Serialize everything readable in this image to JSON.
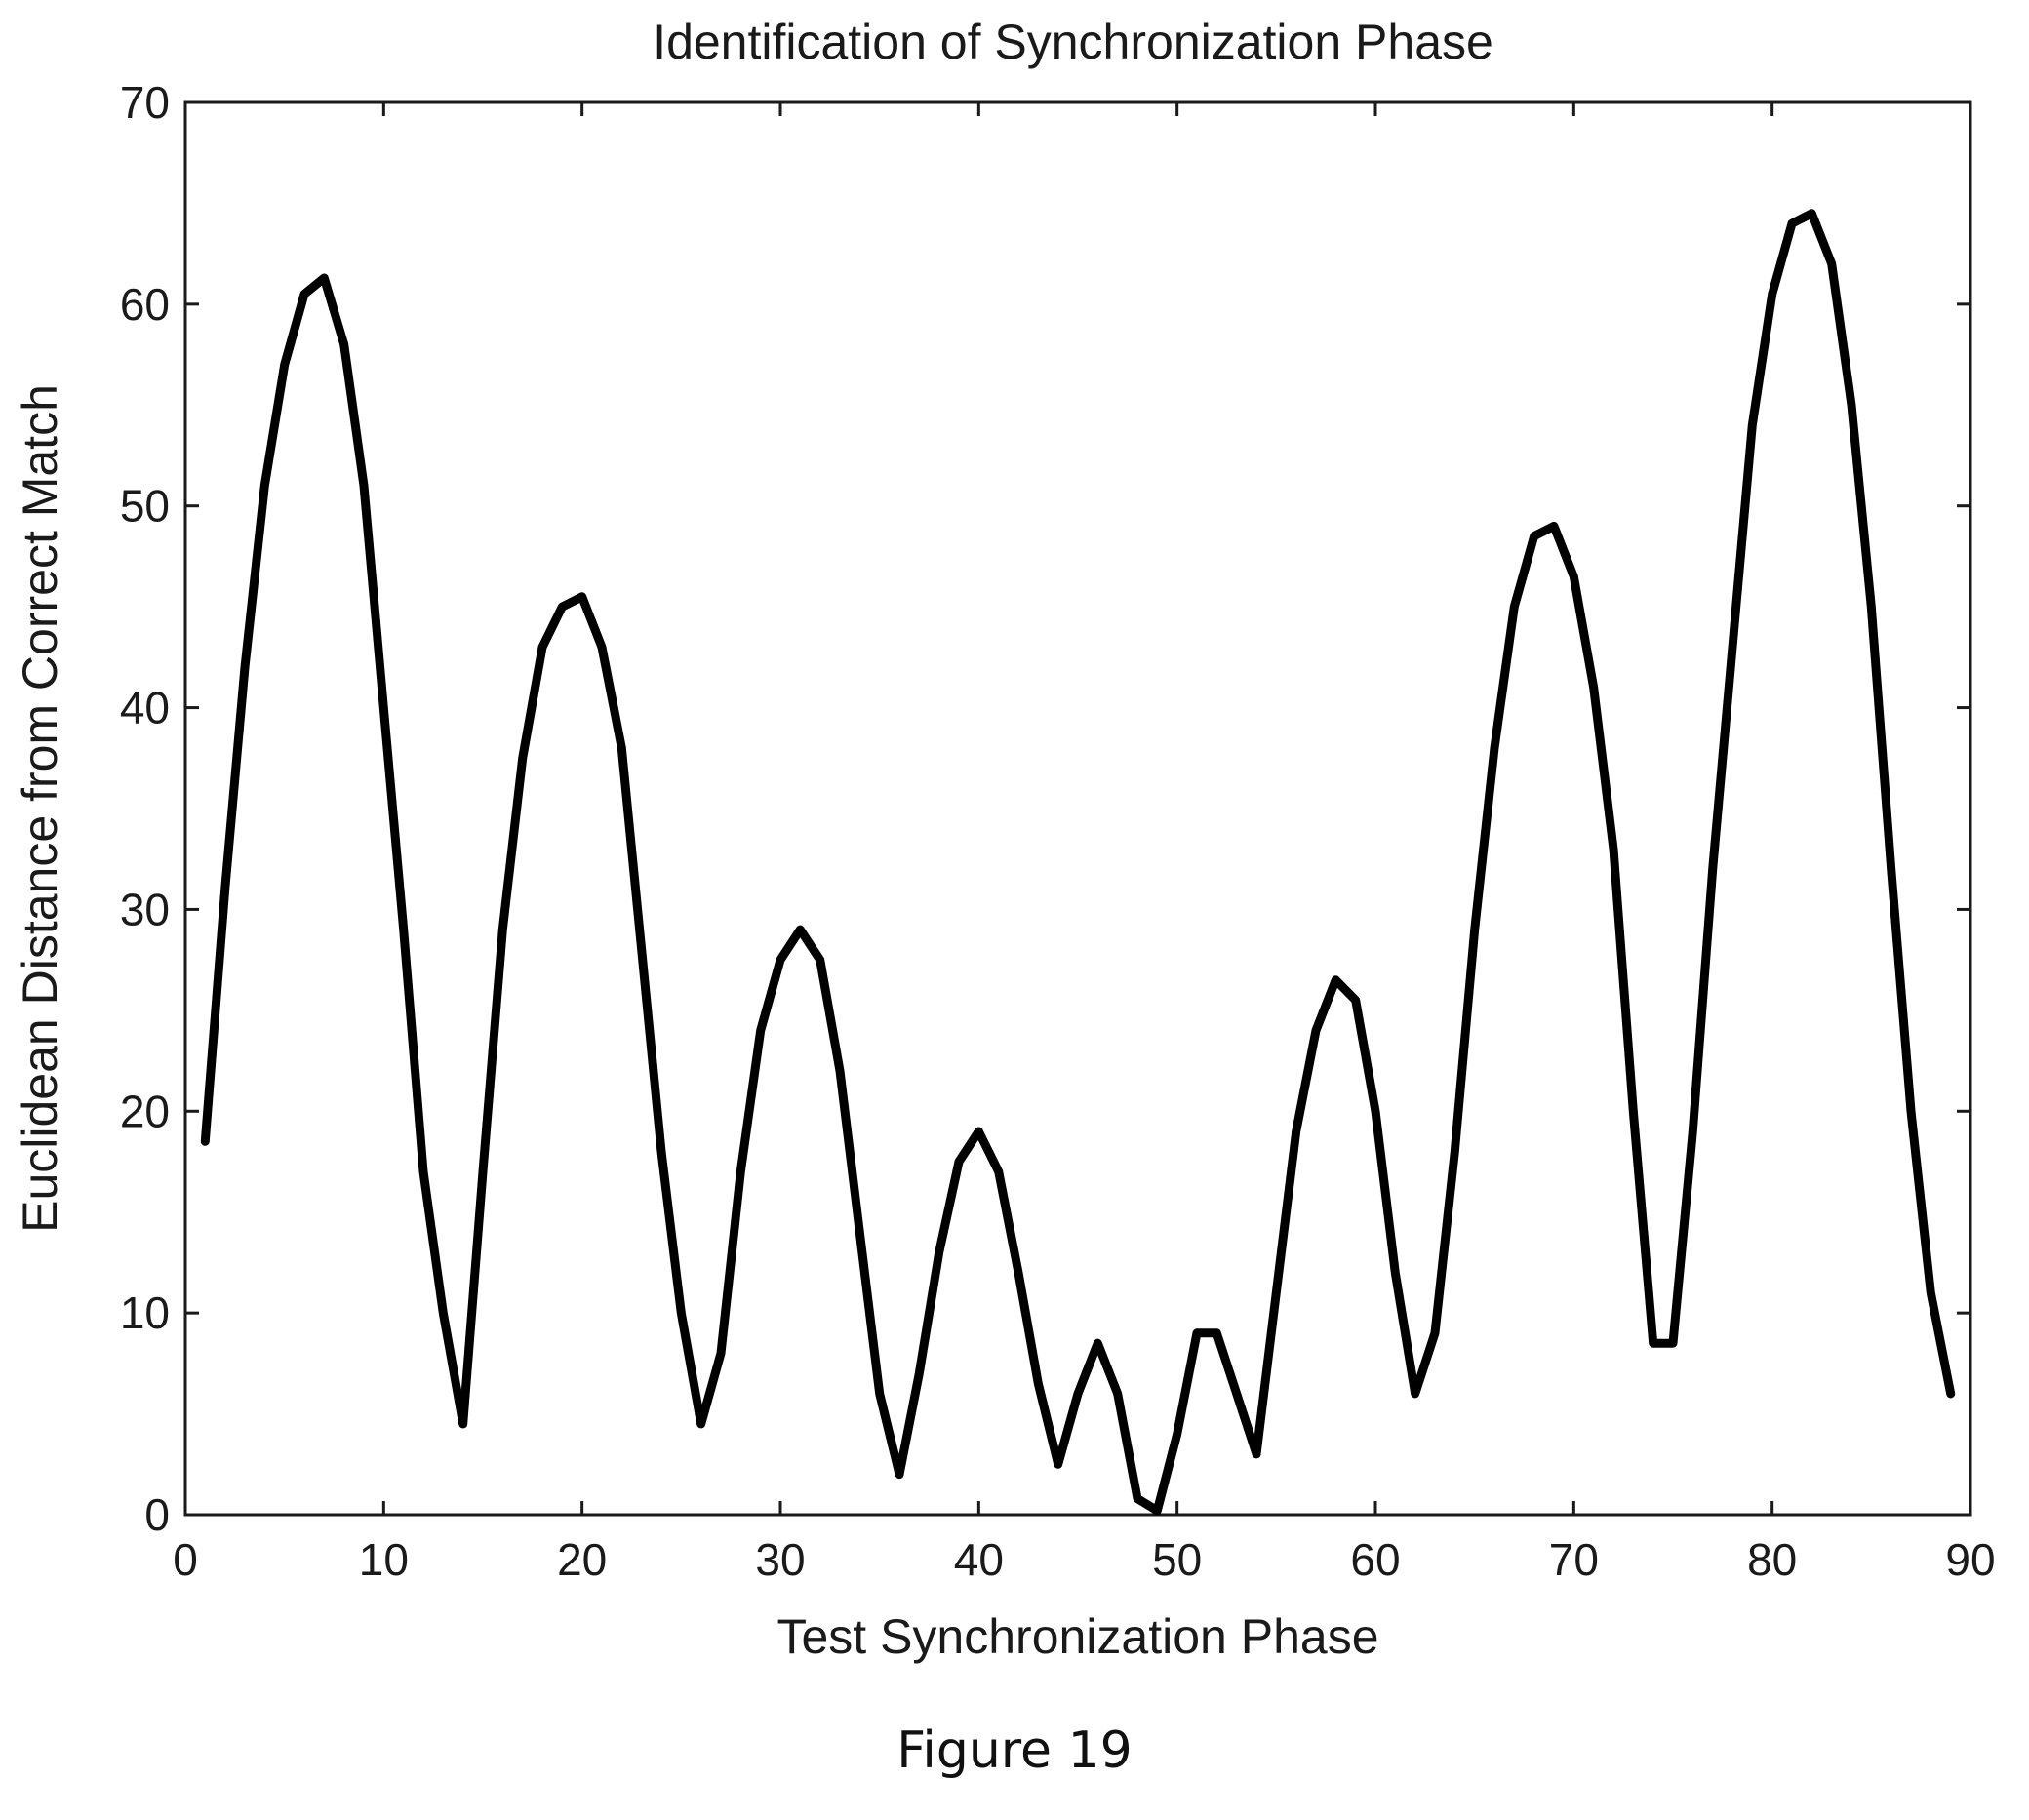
{
  "chart_data": {
    "type": "line",
    "title": "Identification of Synchronization Phase",
    "xlabel": "Test Synchronization Phase",
    "ylabel": "Euclidean Distance from Correct Match",
    "xlim": [
      0,
      90
    ],
    "ylim": [
      0,
      70
    ],
    "xticks": [
      0,
      10,
      20,
      30,
      40,
      50,
      60,
      70,
      80,
      90
    ],
    "yticks": [
      0,
      10,
      20,
      30,
      40,
      50,
      60,
      70
    ],
    "grid": false,
    "line_color": "#000000",
    "series": [
      {
        "x": [
          1,
          2,
          3,
          4,
          5,
          6,
          7,
          8,
          9,
          10,
          11,
          12,
          13,
          14,
          15,
          16,
          17,
          18,
          19,
          20,
          21,
          22,
          23,
          24,
          25,
          26,
          27,
          28,
          29,
          30,
          31,
          32,
          33,
          34,
          35,
          36,
          37,
          38,
          39,
          40,
          41,
          42,
          43,
          44,
          45,
          46,
          47,
          48,
          49,
          50,
          51,
          52,
          53,
          54,
          55,
          56,
          57,
          58,
          59,
          60,
          61,
          62,
          63,
          64,
          65,
          66,
          67,
          68,
          69,
          70,
          71,
          72,
          73,
          74,
          75,
          76,
          77,
          78,
          79,
          80,
          81,
          82,
          83,
          84,
          85,
          86,
          87,
          88,
          89
        ],
        "values": [
          18.5,
          31,
          42,
          51,
          57,
          60.5,
          61.3,
          58,
          51,
          40,
          29,
          17,
          10,
          4.5,
          17,
          29,
          37.5,
          43,
          45,
          45.5,
          43,
          38,
          28,
          18,
          10,
          4.5,
          8,
          17,
          24,
          27.5,
          29,
          27.5,
          22,
          14,
          6,
          2,
          7,
          13,
          17.5,
          19,
          17,
          12,
          6.5,
          2.5,
          6,
          8.5,
          6,
          0.8,
          0.2,
          4,
          9,
          9,
          6,
          3,
          11,
          19,
          24,
          26.5,
          25.5,
          20,
          12,
          6,
          9,
          18,
          29,
          38,
          45,
          48.5,
          49,
          46.5,
          41,
          33,
          20,
          8.5,
          8.5,
          19,
          32,
          43,
          54,
          60.5,
          64,
          64.5,
          62,
          55,
          45,
          32,
          20,
          11,
          6
        ]
      }
    ]
  },
  "caption": "Figure 19"
}
